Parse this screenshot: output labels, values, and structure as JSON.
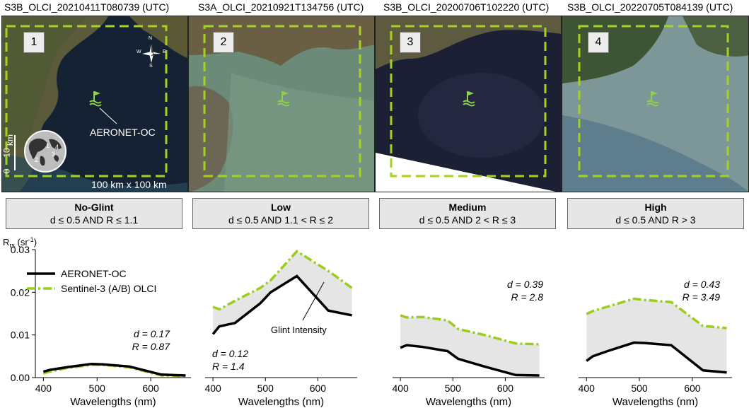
{
  "panels": [
    {
      "title": "S3B_OLCI_20210411T080739 (UTC)",
      "num": "1",
      "category": "No-Glint",
      "condition": "d ≤ 0.5 AND R ≤ 1.1"
    },
    {
      "title": "S3A_OLCI_20210921T134756 (UTC)",
      "num": "2",
      "category": "Low",
      "condition": "d ≤ 0.5 AND 1.1 < R ≤ 2"
    },
    {
      "title": "S3B_OLCI_20200706T102220 (UTC)",
      "num": "3",
      "category": "Medium",
      "condition": "d ≤ 0.5 AND 2 < R ≤ 3"
    },
    {
      "title": "S3B_OLCI_20220705T084139 (UTC)",
      "num": "4",
      "category": "High",
      "condition": "d ≤ 0.5 AND R > 3"
    }
  ],
  "map_labels": {
    "station": "AERONET-OC",
    "extent": "100 km x 100 km",
    "scale_0": "0",
    "scale_10": "10",
    "scale_unit": "km",
    "compass": {
      "n": "N",
      "s": "S",
      "e": "E",
      "w": "W"
    },
    "globe_marks": [
      "1",
      "2",
      "3",
      "4"
    ]
  },
  "icons": [
    "station-flag-icon",
    "compass-icon",
    "globe-icon"
  ],
  "colors": {
    "insitu": "#000000",
    "satellite": "#9acd1e",
    "fill": "#e5e5e5",
    "frame": "#a6d11e"
  },
  "chart_data": {
    "type": "line",
    "ylabel_main": "R",
    "ylabel_sub": "rs",
    "ylabel_unit_pre": " (sr",
    "ylabel_unit_sup": "-1",
    "ylabel_unit_post": ")",
    "xlabel": "Wavelengths (nm)",
    "ylim": [
      0,
      0.03
    ],
    "yticks": [
      "0.00",
      "0.01",
      "0.02",
      "0.03"
    ],
    "xticks": [
      "400",
      "500",
      "600"
    ],
    "legend": [
      "AERONET-OC",
      "Sentinel-3 (A/B) OLCI"
    ],
    "annotation": "Glint Intensity",
    "charts": [
      {
        "d_label": "d = 0.17",
        "r_label": "R = 0.87",
        "insitu_x": [
          400,
          412,
          442,
          490,
          510,
          560,
          620,
          665
        ],
        "insitu_y": [
          0.0014,
          0.0018,
          0.0024,
          0.0032,
          0.0031,
          0.0026,
          0.0007,
          0.0005
        ],
        "sat_x": [
          400,
          412,
          442,
          490,
          510,
          560,
          620,
          665
        ],
        "sat_y": [
          0.001,
          0.0014,
          0.0022,
          0.003,
          0.003,
          0.0024,
          0.0005,
          0.0004
        ]
      },
      {
        "d_label": "d = 0.12",
        "r_label": "R = 1.4",
        "insitu_x": [
          400,
          412,
          442,
          490,
          510,
          560,
          620,
          665
        ],
        "insitu_y": [
          0.0102,
          0.012,
          0.0128,
          0.0174,
          0.02,
          0.0238,
          0.0157,
          0.0146
        ],
        "sat_x": [
          400,
          412,
          442,
          490,
          510,
          560,
          620,
          665
        ],
        "sat_y": [
          0.0166,
          0.016,
          0.018,
          0.021,
          0.0228,
          0.0296,
          0.025,
          0.021
        ]
      },
      {
        "d_label": "d = 0.39",
        "r_label": "R = 2.8",
        "insitu_x": [
          400,
          412,
          442,
          490,
          510,
          560,
          620,
          665
        ],
        "insitu_y": [
          0.007,
          0.0076,
          0.0072,
          0.0062,
          0.0044,
          0.0026,
          0.0006,
          0.0005
        ],
        "sat_x": [
          400,
          412,
          442,
          490,
          510,
          560,
          620,
          665
        ],
        "sat_y": [
          0.0146,
          0.0141,
          0.0142,
          0.0134,
          0.0114,
          0.01,
          0.008,
          0.0078
        ]
      },
      {
        "d_label": "d = 0.43",
        "r_label": "R = 3.49",
        "insitu_x": [
          400,
          412,
          442,
          490,
          510,
          560,
          620,
          665
        ],
        "insitu_y": [
          0.0039,
          0.005,
          0.0063,
          0.0082,
          0.0081,
          0.0076,
          0.0017,
          0.0012
        ],
        "sat_x": [
          400,
          412,
          442,
          490,
          510,
          560,
          620,
          665
        ],
        "sat_y": [
          0.0149,
          0.0156,
          0.0167,
          0.0185,
          0.0182,
          0.0177,
          0.0121,
          0.0116
        ]
      }
    ]
  }
}
